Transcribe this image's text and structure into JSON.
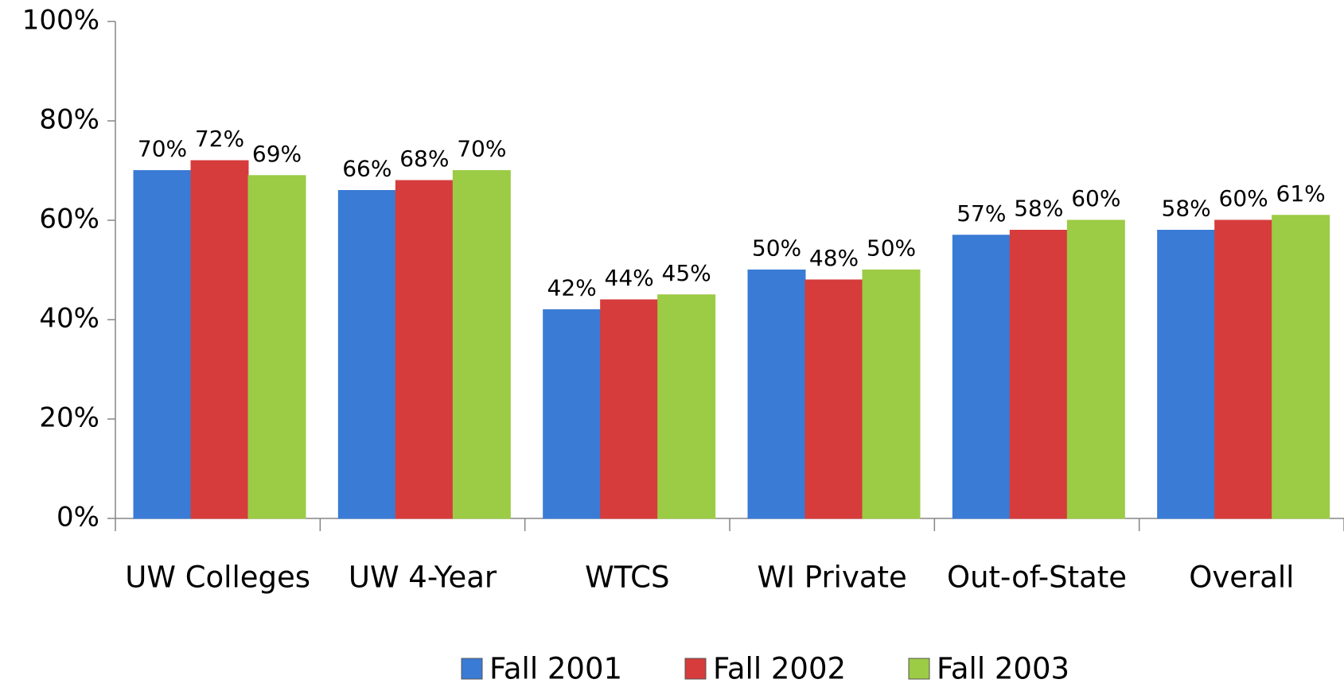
{
  "chart_data": {
    "type": "bar",
    "categories": [
      "UW Colleges",
      "UW 4-Year",
      "WTCS",
      "WI Private",
      "Out-of-State",
      "Overall"
    ],
    "series": [
      {
        "name": "Fall 2001",
        "color": "#3a7bd5",
        "values": [
          70,
          66,
          42,
          50,
          57,
          58
        ],
        "value_labels": [
          "70%",
          "66%",
          "42%",
          "50%",
          "57%",
          "58%"
        ]
      },
      {
        "name": "Fall 2002",
        "color": "#d63c3c",
        "values": [
          72,
          68,
          44,
          48,
          58,
          60
        ],
        "value_labels": [
          "72%",
          "68%",
          "44%",
          "48%",
          "58%",
          "60%"
        ]
      },
      {
        "name": "Fall 2003",
        "color": "#9ccb45",
        "values": [
          69,
          70,
          45,
          50,
          60,
          61
        ],
        "value_labels": [
          "69%",
          "70%",
          "45%",
          "50%",
          "60%",
          "61%"
        ]
      }
    ],
    "ylim": [
      0,
      100
    ],
    "yticks": [
      {
        "value": 0,
        "label": "0%"
      },
      {
        "value": 20,
        "label": "20%"
      },
      {
        "value": 40,
        "label": "40%"
      },
      {
        "value": 60,
        "label": "60%"
      },
      {
        "value": 80,
        "label": "80%"
      },
      {
        "value": 100,
        "label": "100%"
      }
    ],
    "grid": false
  }
}
